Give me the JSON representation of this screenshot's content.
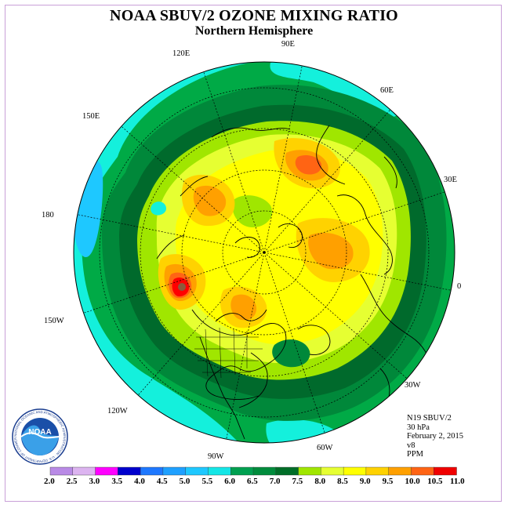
{
  "title": "NOAA SBUV/2 OZONE MIXING RATIO",
  "subtitle": "Northern Hemisphere",
  "longitude_labels": {
    "e90": "90E",
    "e60": "60E",
    "e30": "30E",
    "zero": "0",
    "w30": "30W",
    "w60": "60W",
    "w90": "90W",
    "w120": "120W",
    "w150": "150W",
    "l180": "180",
    "e150": "150E",
    "e120": "120E"
  },
  "info": {
    "satellite": "N19 SBUV/2",
    "level": "30 hPa",
    "date": "February 2, 2015",
    "version": "v8",
    "units": "PPM"
  },
  "logo": {
    "text": "NOAA",
    "ring_text": "NATIONAL OCEANIC AND ATMOSPHERIC ADMINISTRATION · U.S. DEPARTMENT OF COMMERCE"
  },
  "colorbar": {
    "ticks": [
      "2.0",
      "2.5",
      "3.0",
      "3.5",
      "4.0",
      "4.5",
      "5.0",
      "5.5",
      "6.0",
      "6.5",
      "7.0",
      "7.5",
      "8.0",
      "8.5",
      "9.0",
      "9.5",
      "10.0",
      "10.5",
      "11.0"
    ],
    "colors": [
      "#b98ae6",
      "#dcb4f0",
      "#ff00ff",
      "#0000cd",
      "#1e78ff",
      "#1ea0ff",
      "#1ec8ff",
      "#14e6e6",
      "#00a050",
      "#008c3c",
      "#006e28",
      "#a0e600",
      "#e6ff32",
      "#ffff00",
      "#ffd200",
      "#ffa000",
      "#ff6414",
      "#f00000",
      "#8c5a3c"
    ]
  },
  "map_colors": {
    "c55": "#14f0dc",
    "c60": "#00aa46",
    "c65": "#00883a",
    "c70": "#006a2c",
    "c75": "#a0e600",
    "c80": "#e6ff32",
    "c85": "#ffff00",
    "c90": "#ffd200",
    "c95": "#ffa000",
    "c100": "#ff6414",
    "c105": "#ff0000",
    "c110": "#8c5a3c",
    "c50": "#1ec8ff"
  }
}
